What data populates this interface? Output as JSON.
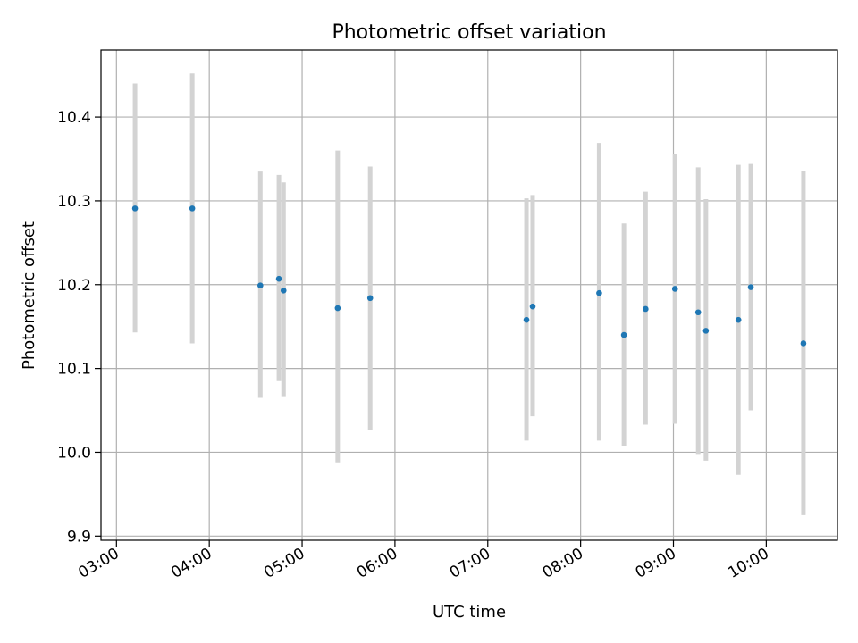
{
  "chart_data": {
    "type": "scatter",
    "title": "Photometric offset variation",
    "xlabel": "UTC time",
    "ylabel": "Photometric offset",
    "xlim": [
      "02:50",
      "10:46"
    ],
    "ylim": [
      9.895,
      10.48
    ],
    "x_ticks": [
      "03:00",
      "04:00",
      "05:00",
      "06:00",
      "07:00",
      "08:00",
      "09:00",
      "10:00"
    ],
    "y_ticks": [
      9.9,
      10.0,
      10.1,
      10.2,
      10.3,
      10.4
    ],
    "y_tick_labels": [
      "9.9",
      "10.0",
      "10.1",
      "10.2",
      "10.3",
      "10.4"
    ],
    "grid": true,
    "colors": {
      "points": "#1f77b4",
      "error_bars": "#d3d3d3"
    },
    "points": [
      {
        "x": "03:12",
        "y": 10.291,
        "ylow": 10.143,
        "yhigh": 10.44
      },
      {
        "x": "03:49",
        "y": 10.291,
        "ylow": 10.13,
        "yhigh": 10.452
      },
      {
        "x": "04:33",
        "y": 10.199,
        "ylow": 10.065,
        "yhigh": 10.335
      },
      {
        "x": "04:45",
        "y": 10.207,
        "ylow": 10.085,
        "yhigh": 10.331
      },
      {
        "x": "04:48",
        "y": 10.193,
        "ylow": 10.067,
        "yhigh": 10.322
      },
      {
        "x": "05:23",
        "y": 10.172,
        "ylow": 9.988,
        "yhigh": 10.36
      },
      {
        "x": "05:44",
        "y": 10.184,
        "ylow": 10.027,
        "yhigh": 10.341
      },
      {
        "x": "07:25",
        "y": 10.158,
        "ylow": 10.014,
        "yhigh": 10.303
      },
      {
        "x": "07:29",
        "y": 10.174,
        "ylow": 10.043,
        "yhigh": 10.307
      },
      {
        "x": "08:12",
        "y": 10.19,
        "ylow": 10.014,
        "yhigh": 10.369
      },
      {
        "x": "08:28",
        "y": 10.14,
        "ylow": 10.008,
        "yhigh": 10.273
      },
      {
        "x": "08:42",
        "y": 10.171,
        "ylow": 10.033,
        "yhigh": 10.311
      },
      {
        "x": "09:01",
        "y": 10.195,
        "ylow": 10.034,
        "yhigh": 10.356
      },
      {
        "x": "09:16",
        "y": 10.167,
        "ylow": 9.998,
        "yhigh": 10.34
      },
      {
        "x": "09:21",
        "y": 10.145,
        "ylow": 9.99,
        "yhigh": 10.302
      },
      {
        "x": "09:42",
        "y": 10.158,
        "ylow": 9.973,
        "yhigh": 10.343
      },
      {
        "x": "09:50",
        "y": 10.197,
        "ylow": 10.05,
        "yhigh": 10.344
      },
      {
        "x": "10:24",
        "y": 10.13,
        "ylow": 9.925,
        "yhigh": 10.336
      }
    ]
  }
}
